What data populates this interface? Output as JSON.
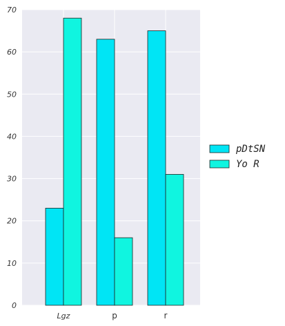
{
  "chart_data": {
    "type": "bar",
    "categories": [
      "Lgz",
      "p",
      "r"
    ],
    "series": [
      {
        "name": "pDtSN",
        "values": [
          23,
          63,
          65
        ],
        "color": "#00e5f5"
      },
      {
        "name": "Yo R",
        "values": [
          68,
          16,
          31
        ],
        "color": "#10f5e0"
      }
    ],
    "ylim": [
      0,
      70
    ],
    "yticks": [
      0,
      10,
      20,
      30,
      40,
      50,
      60,
      70
    ],
    "grid": true,
    "legend_position": "right",
    "background": "#eaeaf2"
  }
}
